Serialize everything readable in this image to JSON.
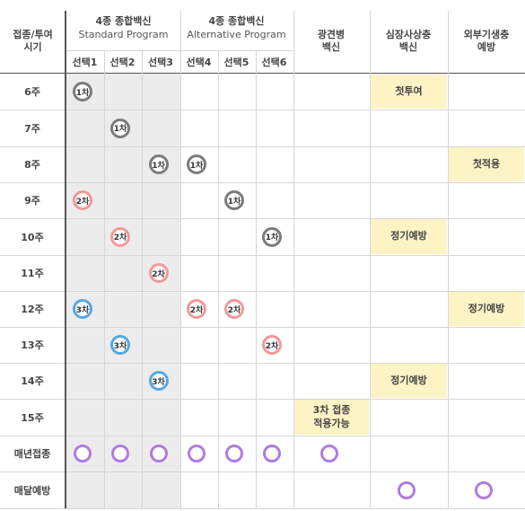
{
  "header": {
    "time_label_line1": "접종/투여",
    "time_label_line2": "시기",
    "group_standard_title": "4종 종합백신",
    "group_standard_sub": "Standard Program",
    "group_alt_title": "4종 종합백신",
    "group_alt_sub": "Alternative Program",
    "options": [
      "선택1",
      "선택2",
      "선택3",
      "선택4",
      "선택5",
      "선택6"
    ],
    "rabies_line1": "광견병",
    "rabies_line2": "백신",
    "heartworm_line1": "심장사상충",
    "heartworm_line2": "백신",
    "parasite_line1": "외부기생충",
    "parasite_line2": "예방"
  },
  "rows": [
    "6주",
    "7주",
    "8주",
    "9주",
    "10주",
    "11주",
    "12주",
    "13주",
    "14주",
    "15주",
    "매년접종",
    "매달예방"
  ],
  "dose_labels": {
    "first": "1차",
    "second": "2차",
    "third": "3차"
  },
  "doses": [
    {
      "row": 0,
      "col": 0,
      "dose": "1차"
    },
    {
      "row": 1,
      "col": 1,
      "dose": "1차"
    },
    {
      "row": 2,
      "col": 2,
      "dose": "1차"
    },
    {
      "row": 2,
      "col": 3,
      "dose": "1차"
    },
    {
      "row": 3,
      "col": 0,
      "dose": "2차"
    },
    {
      "row": 3,
      "col": 4,
      "dose": "1차"
    },
    {
      "row": 4,
      "col": 1,
      "dose": "2차"
    },
    {
      "row": 4,
      "col": 5,
      "dose": "1차"
    },
    {
      "row": 5,
      "col": 2,
      "dose": "2차"
    },
    {
      "row": 6,
      "col": 0,
      "dose": "3차"
    },
    {
      "row": 6,
      "col": 3,
      "dose": "2차"
    },
    {
      "row": 6,
      "col": 4,
      "dose": "2차"
    },
    {
      "row": 7,
      "col": 1,
      "dose": "3차"
    },
    {
      "row": 7,
      "col": 5,
      "dose": "2차"
    },
    {
      "row": 8,
      "col": 2,
      "dose": "3차"
    }
  ],
  "notes": [
    {
      "row": 0,
      "col": 7,
      "text": "첫투여"
    },
    {
      "row": 2,
      "col": 8,
      "text": "첫적용"
    },
    {
      "row": 4,
      "col": 7,
      "text": "정기예방"
    },
    {
      "row": 6,
      "col": 8,
      "text": "정기예방"
    },
    {
      "row": 8,
      "col": 7,
      "text": "정기예방"
    },
    {
      "row": 9,
      "col": 6,
      "text": "3차 접종\n적용가능"
    }
  ],
  "rings": [
    {
      "row": 10,
      "col": 0
    },
    {
      "row": 10,
      "col": 1
    },
    {
      "row": 10,
      "col": 2
    },
    {
      "row": 10,
      "col": 3
    },
    {
      "row": 10,
      "col": 4
    },
    {
      "row": 10,
      "col": 5
    },
    {
      "row": 10,
      "col": 6
    },
    {
      "row": 11,
      "col": 7
    },
    {
      "row": 11,
      "col": 8
    }
  ],
  "colors": {
    "first_dose": "#7b7b7b",
    "second_dose": "#f29999",
    "third_dose": "#55a8e6",
    "annual_ring": "#b07be3",
    "highlight_yellow": "#fdf3c4",
    "standard_shade": "#ececec"
  }
}
